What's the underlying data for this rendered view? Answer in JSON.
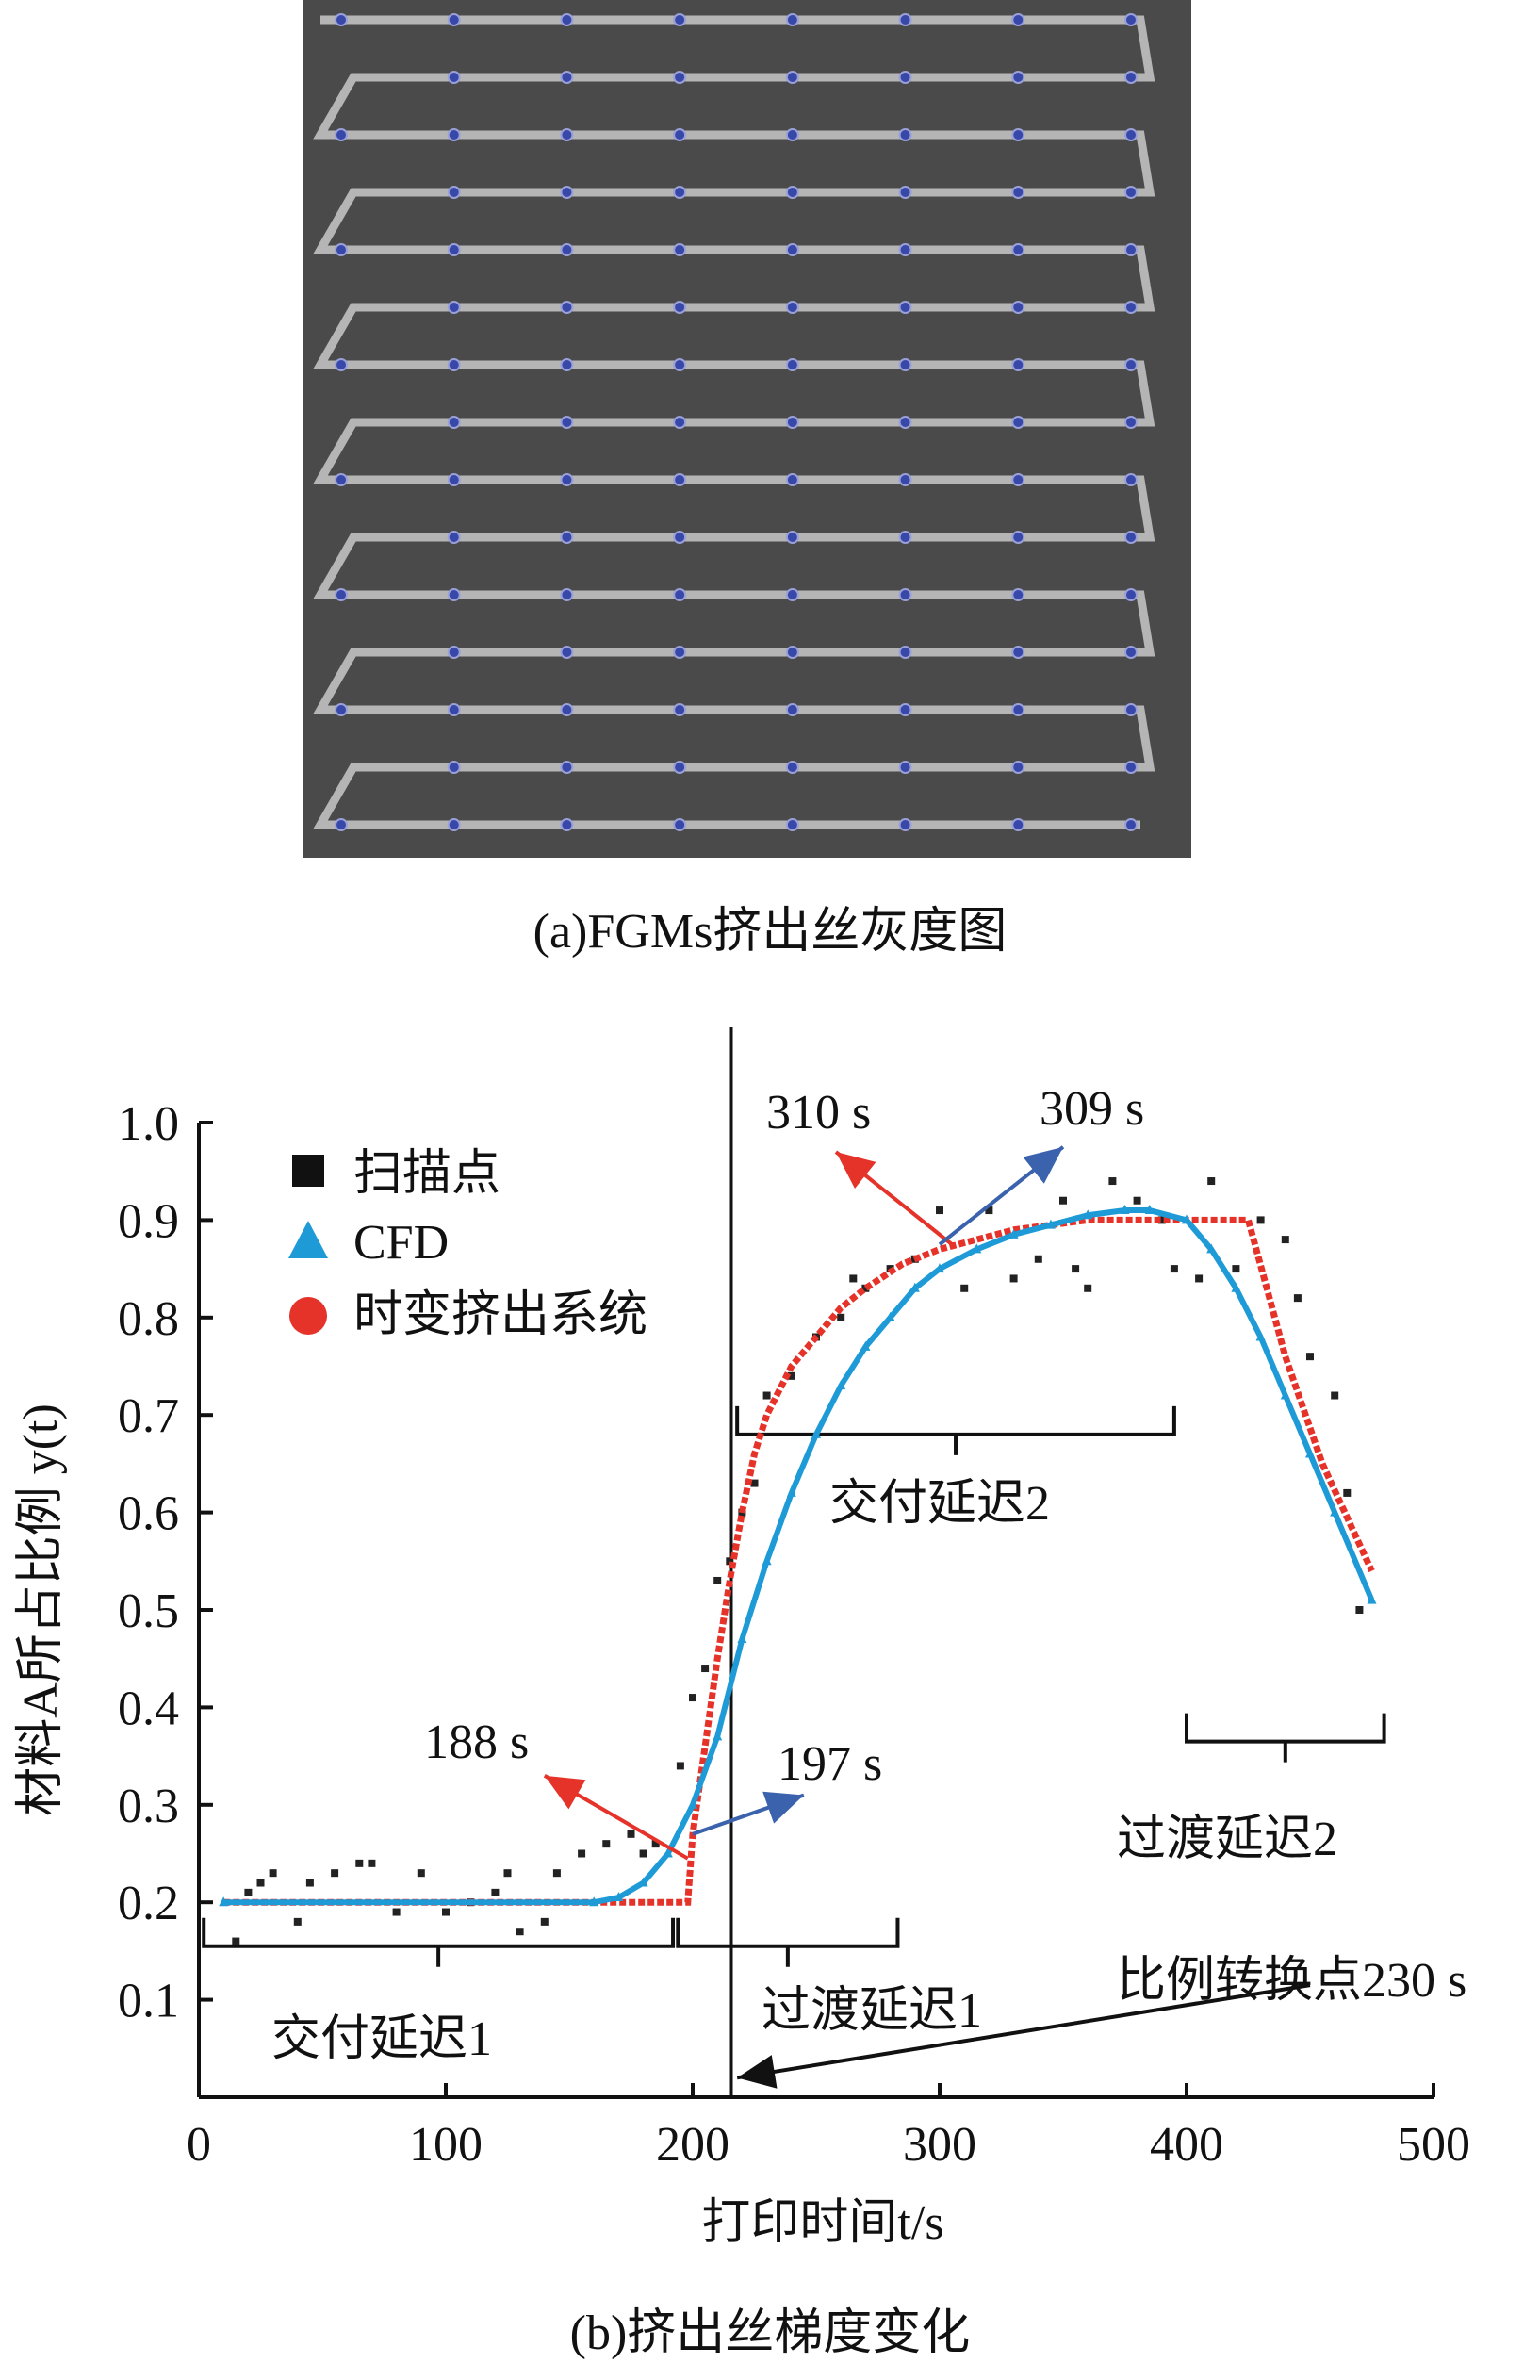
{
  "photo": {
    "caption": "(a)FGMs挤出丝灰度图",
    "rows": 15,
    "cols": 8
  },
  "chart_data": {
    "type": "line",
    "caption": "(b)挤出丝梯度变化",
    "xlabel": "打印时间t/s",
    "ylabel": "材料A所占比例 y(t)",
    "xlim": [
      0,
      500
    ],
    "ylim": [
      0,
      1.0
    ],
    "xticks": [
      "0",
      "100",
      "200",
      "300",
      "400",
      "500"
    ],
    "yticks": [
      "0.1",
      "0.2",
      "0.3",
      "0.4",
      "0.5",
      "0.6",
      "0.7",
      "0.8",
      "0.9",
      "1.0"
    ],
    "legend": {
      "position": "top-left",
      "entries": [
        "扫描点",
        "CFD",
        "时变挤出系统"
      ]
    },
    "colors": {
      "scan": "#222222",
      "cfd": "#1e9bd7",
      "model": "#e5332a",
      "arrow_blue": "#3b62ad"
    },
    "series": [
      {
        "name": "时变挤出系统",
        "x": [
          10,
          198,
          200,
          205,
          210,
          215,
          220,
          225,
          230,
          240,
          250,
          260,
          270,
          285,
          300,
          315,
          330,
          345,
          360,
          390,
          425,
          440,
          455,
          475
        ],
        "y": [
          0.2,
          0.2,
          0.27,
          0.36,
          0.45,
          0.53,
          0.6,
          0.66,
          0.7,
          0.75,
          0.78,
          0.81,
          0.83,
          0.855,
          0.87,
          0.88,
          0.89,
          0.895,
          0.9,
          0.9,
          0.9,
          0.76,
          0.65,
          0.54
        ]
      },
      {
        "name": "CFD",
        "x": [
          10,
          160,
          170,
          180,
          190,
          200,
          210,
          220,
          230,
          240,
          250,
          260,
          270,
          280,
          290,
          300,
          315,
          330,
          345,
          360,
          375,
          385,
          400,
          410,
          420,
          430,
          440,
          450,
          460,
          475
        ],
        "y": [
          0.2,
          0.2,
          0.205,
          0.22,
          0.25,
          0.3,
          0.37,
          0.47,
          0.55,
          0.62,
          0.68,
          0.73,
          0.77,
          0.8,
          0.83,
          0.85,
          0.87,
          0.885,
          0.895,
          0.905,
          0.91,
          0.91,
          0.9,
          0.87,
          0.83,
          0.78,
          0.72,
          0.66,
          0.6,
          0.51
        ]
      },
      {
        "name": "扫描点",
        "x": [
          15,
          20,
          25,
          30,
          40,
          45,
          55,
          65,
          70,
          80,
          90,
          100,
          110,
          120,
          125,
          130,
          140,
          145,
          155,
          165,
          175,
          180,
          185,
          195,
          200,
          205,
          210,
          215,
          220,
          225,
          230,
          240,
          250,
          260,
          265,
          270,
          280,
          290,
          300,
          310,
          320,
          330,
          340,
          350,
          355,
          360,
          370,
          380,
          390,
          395,
          405,
          410,
          420,
          430,
          440,
          445,
          450,
          460,
          465,
          470
        ],
        "y": [
          0.16,
          0.21,
          0.22,
          0.23,
          0.18,
          0.22,
          0.23,
          0.24,
          0.24,
          0.19,
          0.23,
          0.19,
          0.2,
          0.21,
          0.23,
          0.17,
          0.18,
          0.23,
          0.25,
          0.26,
          0.27,
          0.25,
          0.26,
          0.34,
          0.41,
          0.44,
          0.53,
          0.55,
          0.6,
          0.63,
          0.72,
          0.74,
          0.78,
          0.8,
          0.84,
          0.83,
          0.85,
          0.86,
          0.91,
          0.83,
          0.91,
          0.84,
          0.86,
          0.92,
          0.85,
          0.83,
          0.94,
          0.92,
          0.9,
          0.85,
          0.84,
          0.94,
          0.85,
          0.9,
          0.88,
          0.82,
          0.76,
          0.72,
          0.62,
          0.5
        ]
      }
    ],
    "annotations": {
      "a188": "188 s",
      "a197": "197 s",
      "a310": "310 s",
      "a309": "309 s",
      "switch": "比例转换点230 s",
      "d1": "交付延迟1",
      "t1": "过渡延迟1",
      "d2": "交付延迟2",
      "t2": "过渡延迟2"
    }
  }
}
